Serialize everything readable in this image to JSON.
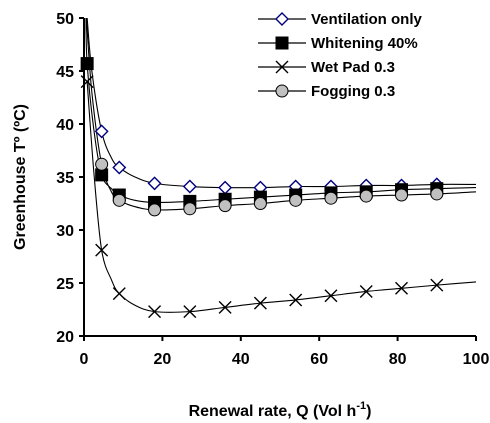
{
  "chart_data": {
    "type": "line",
    "xlabel": "Renewal rate, Q (Vol h",
    "xlabel_sup": "-1",
    "xlabel_close": ")",
    "ylabel": "Greenhouse Tº (ºC)",
    "xlim": [
      0,
      100
    ],
    "ylim": [
      20,
      50
    ],
    "xticks": [
      "0",
      "20",
      "40",
      "60",
      "80",
      "100"
    ],
    "yticks": [
      "20",
      "25",
      "30",
      "35",
      "40",
      "45",
      "50"
    ],
    "legend_position": "top-right",
    "series": [
      {
        "name": "Ventilation only",
        "marker": "diamond-open",
        "color": "#000080",
        "markers": [
          [
            4.5,
            39.3
          ],
          [
            9,
            35.9
          ],
          [
            18,
            34.4
          ],
          [
            27,
            34.1
          ],
          [
            36,
            34.0
          ],
          [
            45,
            34.0
          ],
          [
            54,
            34.1
          ],
          [
            63,
            34.1
          ],
          [
            72,
            34.2
          ],
          [
            81,
            34.2
          ],
          [
            90,
            34.3
          ]
        ],
        "curve": [
          [
            0.8,
            50
          ],
          [
            2,
            45
          ],
          [
            4.5,
            39.3
          ],
          [
            7,
            36.8
          ],
          [
            9,
            35.9
          ],
          [
            13,
            35.0
          ],
          [
            18,
            34.4
          ],
          [
            27,
            34.1
          ],
          [
            36,
            34.0
          ],
          [
            45,
            34.0
          ],
          [
            54,
            34.1
          ],
          [
            63,
            34.1
          ],
          [
            72,
            34.2
          ],
          [
            81,
            34.2
          ],
          [
            90,
            34.3
          ],
          [
            100,
            34.3
          ]
        ]
      },
      {
        "name": "Whitening 40%",
        "marker": "square-filled",
        "color": "#000000",
        "markers": [
          [
            0.8,
            45.7
          ],
          [
            4.5,
            35.2
          ],
          [
            9,
            33.3
          ],
          [
            18,
            32.6
          ],
          [
            27,
            32.7
          ],
          [
            36,
            32.9
          ],
          [
            45,
            33.1
          ],
          [
            54,
            33.3
          ],
          [
            63,
            33.5
          ],
          [
            72,
            33.6
          ],
          [
            81,
            33.8
          ],
          [
            90,
            33.9
          ]
        ],
        "curve": [
          [
            0.5,
            50
          ],
          [
            0.8,
            45.7
          ],
          [
            2.5,
            39.5
          ],
          [
            4.5,
            35.2
          ],
          [
            7,
            33.9
          ],
          [
            9,
            33.3
          ],
          [
            13,
            32.8
          ],
          [
            18,
            32.6
          ],
          [
            27,
            32.7
          ],
          [
            36,
            32.9
          ],
          [
            45,
            33.1
          ],
          [
            54,
            33.3
          ],
          [
            63,
            33.5
          ],
          [
            72,
            33.6
          ],
          [
            81,
            33.8
          ],
          [
            90,
            33.9
          ],
          [
            100,
            34.0
          ]
        ]
      },
      {
        "name": "Wet Pad 0.3",
        "marker": "x",
        "color": "#000000",
        "markers": [
          [
            0.8,
            44.0
          ],
          [
            4.5,
            28.1
          ],
          [
            9,
            24.0
          ],
          [
            18,
            22.3
          ],
          [
            27,
            22.3
          ],
          [
            36,
            22.7
          ],
          [
            45,
            23.1
          ],
          [
            54,
            23.4
          ],
          [
            63,
            23.8
          ],
          [
            72,
            24.2
          ],
          [
            81,
            24.5
          ],
          [
            90,
            24.8
          ]
        ],
        "curve": [
          [
            0.8,
            44.0
          ],
          [
            2.5,
            35.5
          ],
          [
            4.5,
            28.1
          ],
          [
            7,
            25.3
          ],
          [
            9,
            24.0
          ],
          [
            13,
            22.9
          ],
          [
            18,
            22.3
          ],
          [
            27,
            22.3
          ],
          [
            36,
            22.7
          ],
          [
            45,
            23.1
          ],
          [
            54,
            23.4
          ],
          [
            63,
            23.8
          ],
          [
            72,
            24.2
          ],
          [
            81,
            24.5
          ],
          [
            90,
            24.8
          ],
          [
            100,
            25.1
          ]
        ]
      },
      {
        "name": "Fogging 0.3",
        "marker": "circle-filled",
        "color": "#c0c0c0",
        "markers": [
          [
            4.5,
            36.2
          ],
          [
            9,
            32.8
          ],
          [
            18,
            31.9
          ],
          [
            27,
            32.0
          ],
          [
            36,
            32.3
          ],
          [
            45,
            32.5
          ],
          [
            54,
            32.8
          ],
          [
            63,
            33.0
          ],
          [
            72,
            33.2
          ],
          [
            81,
            33.3
          ],
          [
            90,
            33.4
          ]
        ],
        "curve": [
          [
            0.6,
            50
          ],
          [
            2,
            43
          ],
          [
            4.5,
            36.2
          ],
          [
            7,
            33.6
          ],
          [
            9,
            32.8
          ],
          [
            13,
            32.2
          ],
          [
            18,
            31.9
          ],
          [
            27,
            32.0
          ],
          [
            36,
            32.3
          ],
          [
            45,
            32.5
          ],
          [
            54,
            32.8
          ],
          [
            63,
            33.0
          ],
          [
            72,
            33.2
          ],
          [
            81,
            33.3
          ],
          [
            90,
            33.4
          ],
          [
            100,
            33.6
          ]
        ]
      }
    ]
  }
}
